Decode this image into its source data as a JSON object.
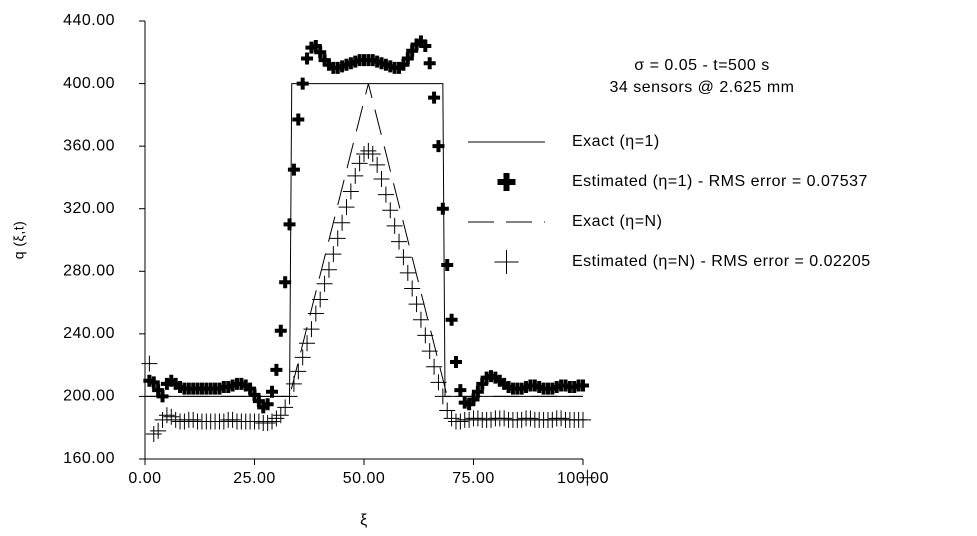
{
  "chart_data": {
    "type": "line",
    "annotations": [
      "σ = 0.05 - t=500 s",
      "34 sensors @ 2.625 mm"
    ],
    "x_label": "ξ",
    "y_label": "q (ξ,t)",
    "xlim": [
      0,
      100
    ],
    "ylim": [
      160,
      440
    ],
    "xticks": [
      {
        "value": 0,
        "label": "0.00"
      },
      {
        "value": 25,
        "label": "25.00"
      },
      {
        "value": 50,
        "label": "50.00"
      },
      {
        "value": 75,
        "label": "75.00"
      },
      {
        "value": 100,
        "label": "100.00"
      }
    ],
    "yticks": [
      {
        "value": 160,
        "label": "160.00"
      },
      {
        "value": 200,
        "label": "200.00"
      },
      {
        "value": 240,
        "label": "240.00"
      },
      {
        "value": 280,
        "label": "280.00"
      },
      {
        "value": 320,
        "label": "320.00"
      },
      {
        "value": 360,
        "label": "360.00"
      },
      {
        "value": 400,
        "label": "400.00"
      },
      {
        "value": 440,
        "label": "440.00"
      }
    ],
    "legend": "right",
    "series": [
      {
        "name": "Exact (η=1)",
        "color": "#000000",
        "style": "solid",
        "x": [
          0,
          33,
          33.5,
          68,
          68.5,
          100
        ],
        "values": [
          200,
          200,
          400,
          400,
          200,
          200
        ]
      },
      {
        "name": "Estimated (η=1) - RMS error = 0.07537",
        "color": "#000000",
        "style": "thick-plus",
        "x": [
          1,
          2,
          3,
          4,
          5,
          6,
          7,
          8,
          9,
          10,
          11,
          12,
          13,
          14,
          15,
          16,
          17,
          18,
          19,
          20,
          21,
          22,
          23,
          24,
          25,
          26,
          27,
          28,
          29,
          30,
          31,
          32,
          33,
          34,
          35,
          36,
          37,
          38,
          39,
          40,
          41,
          42,
          43,
          44,
          45,
          46,
          47,
          48,
          49,
          50,
          51,
          52,
          53,
          54,
          55,
          56,
          57,
          58,
          59,
          60,
          61,
          62,
          63,
          64,
          65,
          66,
          67,
          68,
          69,
          70,
          71,
          72,
          73,
          74,
          75,
          76,
          77,
          78,
          79,
          80,
          81,
          82,
          83,
          84,
          85,
          86,
          87,
          88,
          89,
          90,
          91,
          92,
          93,
          94,
          95,
          96,
          97,
          98,
          99,
          100
        ],
        "values": [
          210,
          209,
          204,
          200,
          208,
          210,
          208,
          206,
          205,
          205,
          205,
          205,
          205,
          205,
          205,
          205,
          205,
          206,
          206,
          207,
          208,
          208,
          207,
          205,
          201,
          197,
          193,
          195,
          203,
          217,
          242,
          273,
          310,
          345,
          377,
          400,
          416,
          423,
          424,
          420,
          415,
          412,
          410,
          410,
          411,
          412,
          413,
          414,
          415,
          415,
          415,
          415,
          414,
          413,
          412,
          411,
          410,
          410,
          412,
          416,
          421,
          425,
          427,
          424,
          413,
          391,
          360,
          320,
          284,
          249,
          222,
          204,
          196,
          195,
          198,
          203,
          208,
          212,
          213,
          212,
          210,
          208,
          206,
          205,
          205,
          205,
          206,
          207,
          207,
          206,
          205,
          205,
          205,
          206,
          207,
          207,
          206,
          206,
          207,
          207
        ]
      },
      {
        "name": "Exact (η=N)",
        "color": "#000000",
        "style": "dashed",
        "x": [
          0,
          33,
          51,
          69,
          100
        ],
        "values": [
          200,
          200,
          400,
          200,
          200
        ]
      },
      {
        "name": "Estimated (η=N) - RMS error = 0.02205",
        "color": "#000000",
        "style": "thin-plus",
        "x": [
          1,
          2,
          3,
          4,
          5,
          6,
          7,
          8,
          9,
          10,
          11,
          12,
          13,
          14,
          15,
          16,
          17,
          18,
          19,
          20,
          21,
          22,
          23,
          24,
          25,
          26,
          27,
          28,
          29,
          30,
          31,
          32,
          33,
          34,
          35,
          36,
          37,
          38,
          39,
          40,
          41,
          42,
          43,
          44,
          45,
          46,
          47,
          48,
          49,
          50,
          51,
          52,
          53,
          54,
          55,
          56,
          57,
          58,
          59,
          60,
          61,
          62,
          63,
          64,
          65,
          66,
          67,
          68,
          69,
          70,
          71,
          72,
          73,
          74,
          75,
          76,
          77,
          78,
          79,
          80,
          81,
          82,
          83,
          84,
          85,
          86,
          87,
          88,
          89,
          90,
          91,
          92,
          93,
          94,
          95,
          96,
          97,
          98,
          99,
          100,
          101
        ],
        "values": [
          221,
          176,
          178,
          185,
          188,
          187,
          185,
          184,
          184,
          185,
          185,
          184,
          184,
          184,
          184,
          184,
          184,
          184,
          185,
          185,
          184,
          184,
          184,
          184,
          184,
          184,
          183,
          183,
          184,
          186,
          188,
          193,
          200,
          208,
          216,
          225,
          234,
          243,
          253,
          262,
          272,
          281,
          291,
          301,
          311,
          321,
          331,
          341,
          349,
          355,
          357,
          355,
          348,
          339,
          329,
          319,
          309,
          299,
          289,
          279,
          269,
          259,
          249,
          239,
          229,
          219,
          209,
          200,
          191,
          186,
          184,
          184,
          185,
          185,
          186,
          186,
          185,
          185,
          185,
          186,
          186,
          186,
          185,
          185,
          185,
          185,
          186,
          186,
          185,
          185,
          185,
          185,
          185,
          186,
          186,
          185,
          185,
          185,
          185,
          185,
          148
        ]
      }
    ]
  }
}
